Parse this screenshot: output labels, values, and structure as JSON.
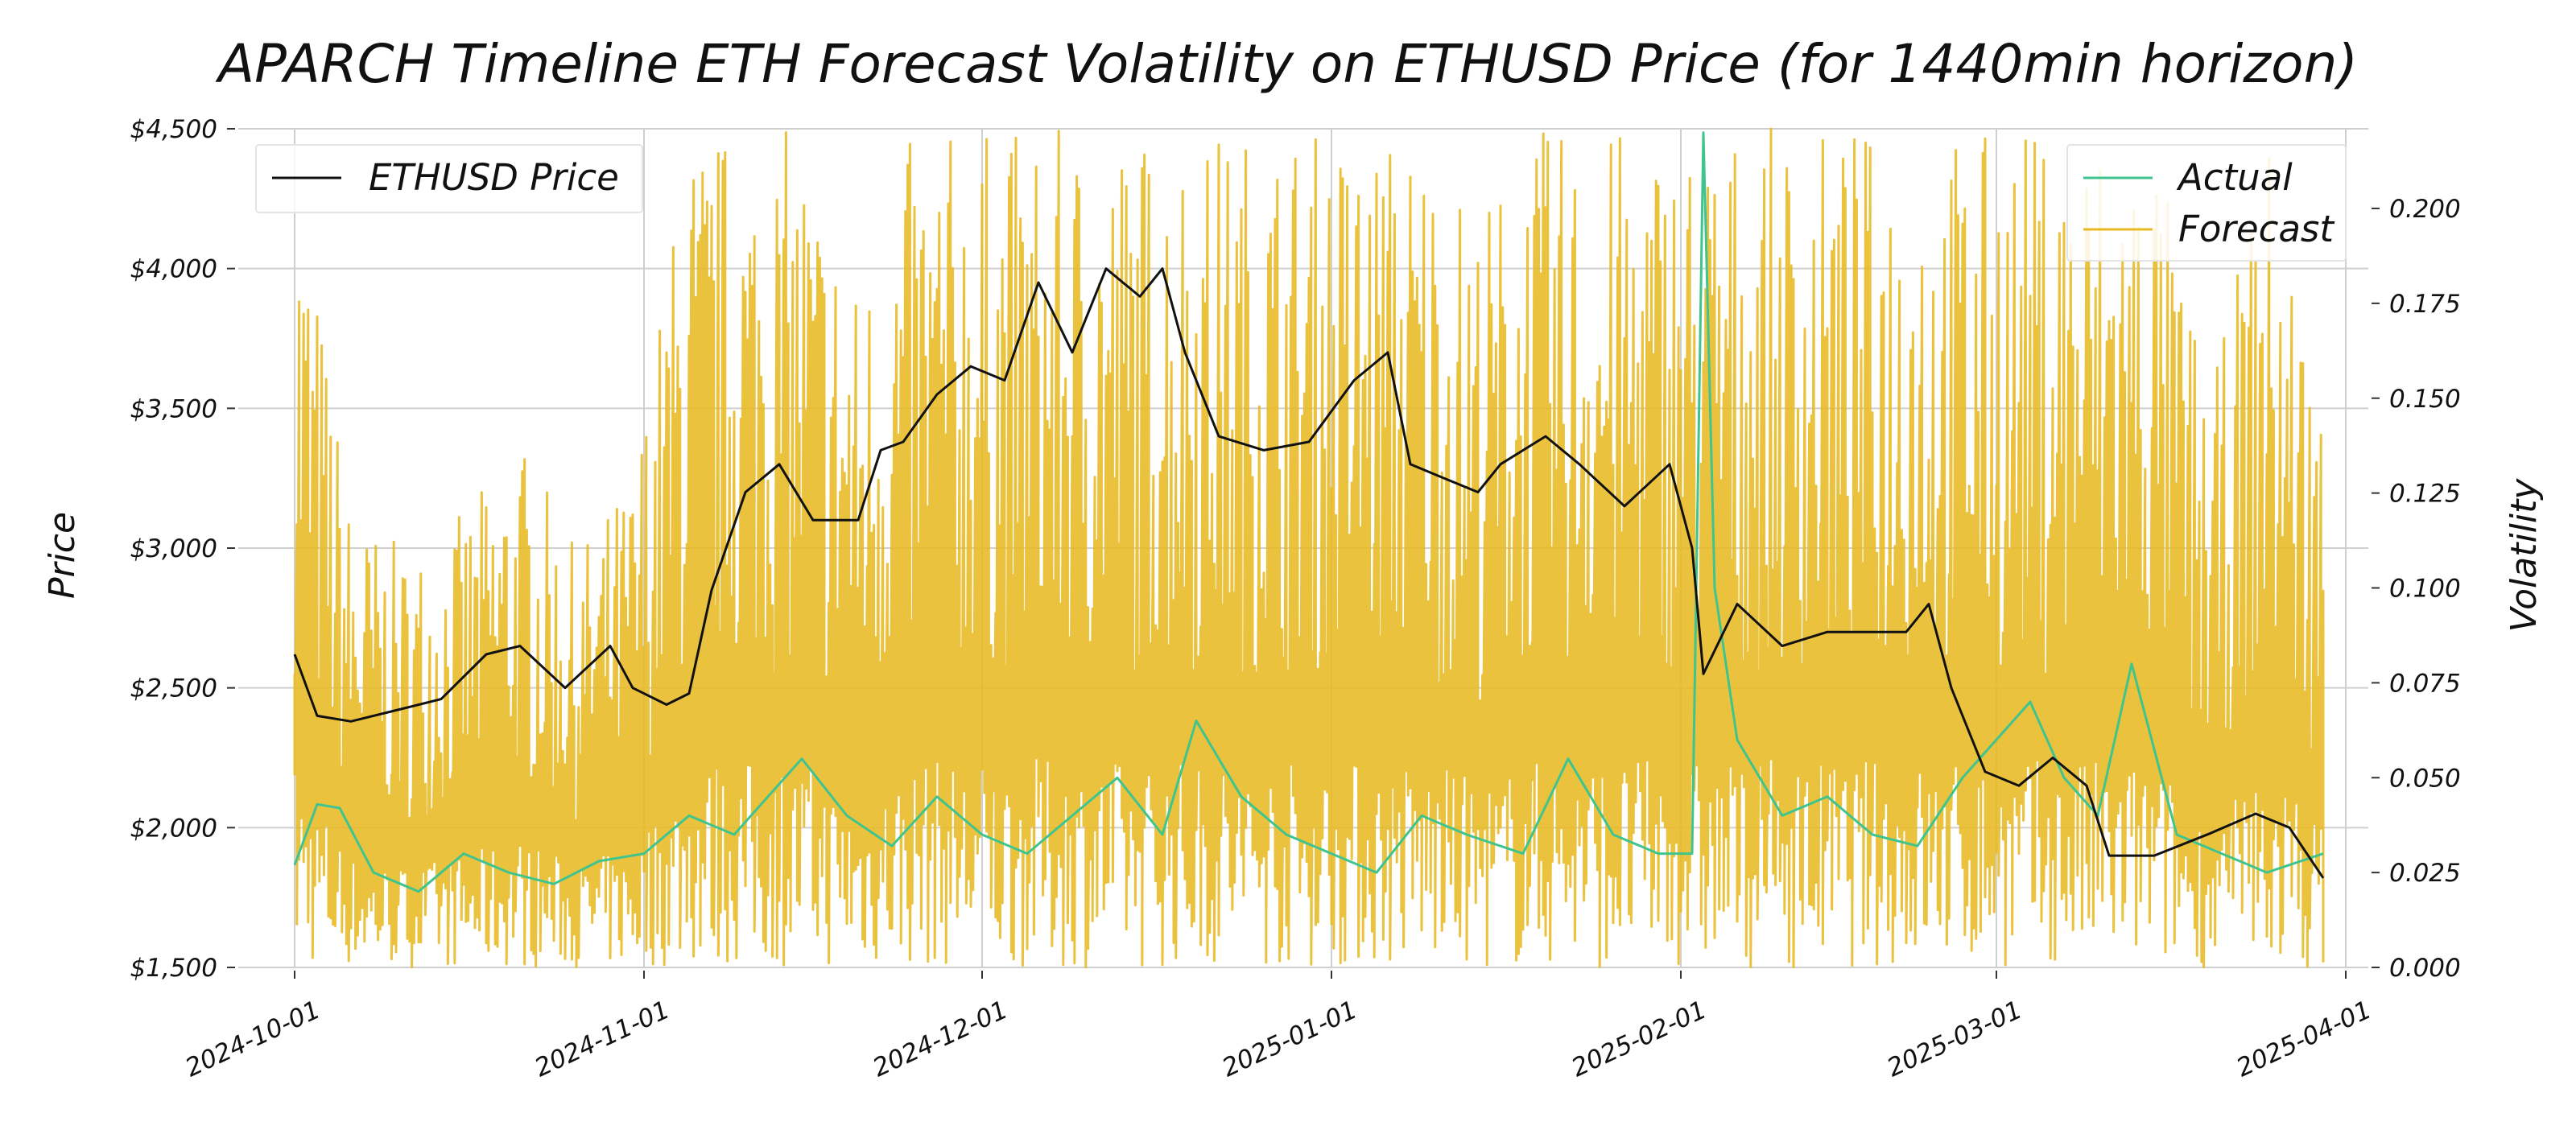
{
  "chart_data": {
    "type": "line",
    "title": "APARCH Timeline ETH Forecast Volatility on ETHUSD Price (for 1440min horizon)",
    "xlabel": "",
    "ylabel_left": "Price",
    "ylabel_right": "Volatility",
    "x_range": [
      "2024-09-26",
      "2025-04-03"
    ],
    "ylim_left": [
      1500,
      4500
    ],
    "ylim_right": [
      0.0,
      0.221
    ],
    "x_ticks": [
      "2024-10-01",
      "2024-11-01",
      "2024-12-01",
      "2025-01-01",
      "2025-02-01",
      "2025-03-01",
      "2025-04-01"
    ],
    "y_ticks_left": [
      {
        "value": 1500,
        "label": "$1,500"
      },
      {
        "value": 2000,
        "label": "$2,000"
      },
      {
        "value": 2500,
        "label": "$2,500"
      },
      {
        "value": 3000,
        "label": "$3,000"
      },
      {
        "value": 3500,
        "label": "$3,500"
      },
      {
        "value": 4000,
        "label": "$4,000"
      },
      {
        "value": 4500,
        "label": "$4,500"
      }
    ],
    "y_ticks_right": [
      {
        "value": 0.0,
        "label": "0.000"
      },
      {
        "value": 0.025,
        "label": "0.025"
      },
      {
        "value": 0.05,
        "label": "0.050"
      },
      {
        "value": 0.075,
        "label": "0.075"
      },
      {
        "value": 0.1,
        "label": "0.100"
      },
      {
        "value": 0.125,
        "label": "0.125"
      },
      {
        "value": 0.15,
        "label": "0.150"
      },
      {
        "value": 0.175,
        "label": "0.175"
      },
      {
        "value": 0.2,
        "label": "0.200"
      }
    ],
    "grid": true,
    "legend_left": {
      "placement": "top-left",
      "entries": [
        "ETHUSD Price"
      ]
    },
    "legend_right": {
      "placement": "top-right",
      "entries": [
        "Actual",
        "Forecast"
      ]
    },
    "series": [
      {
        "name": "ETHUSD Price",
        "axis": "left",
        "color": "#111111",
        "x": [
          "2024-10-01",
          "2024-10-03",
          "2024-10-06",
          "2024-10-10",
          "2024-10-14",
          "2024-10-18",
          "2024-10-21",
          "2024-10-25",
          "2024-10-29",
          "2024-10-31",
          "2024-11-03",
          "2024-11-05",
          "2024-11-07",
          "2024-11-10",
          "2024-11-13",
          "2024-11-16",
          "2024-11-20",
          "2024-11-22",
          "2024-11-24",
          "2024-11-27",
          "2024-11-30",
          "2024-12-03",
          "2024-12-06",
          "2024-12-09",
          "2024-12-12",
          "2024-12-15",
          "2024-12-17",
          "2024-12-19",
          "2024-12-22",
          "2024-12-26",
          "2024-12-30",
          "2025-01-03",
          "2025-01-06",
          "2025-01-08",
          "2025-01-11",
          "2025-01-14",
          "2025-01-16",
          "2025-01-20",
          "2025-01-23",
          "2025-01-27",
          "2025-01-31",
          "2025-02-02",
          "2025-02-03",
          "2025-02-06",
          "2025-02-10",
          "2025-02-14",
          "2025-02-18",
          "2025-02-21",
          "2025-02-23",
          "2025-02-25",
          "2025-02-28",
          "2025-03-03",
          "2025-03-06",
          "2025-03-09",
          "2025-03-11",
          "2025-03-15",
          "2025-03-20",
          "2025-03-24",
          "2025-03-27",
          "2025-03-30"
        ],
        "values": [
          2620,
          2400,
          2380,
          2420,
          2460,
          2620,
          2650,
          2500,
          2650,
          2500,
          2440,
          2480,
          2850,
          3200,
          3300,
          3100,
          3100,
          3350,
          3380,
          3550,
          3650,
          3600,
          3950,
          3700,
          4000,
          3900,
          4000,
          3700,
          3400,
          3350,
          3380,
          3600,
          3700,
          3300,
          3250,
          3200,
          3300,
          3400,
          3300,
          3150,
          3300,
          3000,
          2550,
          2800,
          2650,
          2700,
          2700,
          2700,
          2800,
          2500,
          2200,
          2150,
          2250,
          2150,
          1900,
          1900,
          1980,
          2050,
          2000,
          1820
        ]
      },
      {
        "name": "Actual",
        "axis": "right",
        "color": "#3fc48f",
        "x": [
          "2024-10-01",
          "2024-10-03",
          "2024-10-05",
          "2024-10-08",
          "2024-10-12",
          "2024-10-16",
          "2024-10-20",
          "2024-10-24",
          "2024-10-28",
          "2024-11-01",
          "2024-11-05",
          "2024-11-09",
          "2024-11-12",
          "2024-11-15",
          "2024-11-19",
          "2024-11-23",
          "2024-11-27",
          "2024-12-01",
          "2024-12-05",
          "2024-12-09",
          "2024-12-13",
          "2024-12-17",
          "2024-12-20",
          "2024-12-24",
          "2024-12-28",
          "2025-01-01",
          "2025-01-05",
          "2025-01-09",
          "2025-01-13",
          "2025-01-18",
          "2025-01-22",
          "2025-01-26",
          "2025-01-30",
          "2025-02-02",
          "2025-02-03",
          "2025-02-04",
          "2025-02-06",
          "2025-02-10",
          "2025-02-14",
          "2025-02-18",
          "2025-02-22",
          "2025-02-26",
          "2025-03-01",
          "2025-03-04",
          "2025-03-07",
          "2025-03-10",
          "2025-03-13",
          "2025-03-17",
          "2025-03-21",
          "2025-03-25",
          "2025-03-30"
        ],
        "values": [
          0.027,
          0.043,
          0.042,
          0.025,
          0.02,
          0.03,
          0.025,
          0.022,
          0.028,
          0.03,
          0.04,
          0.035,
          0.045,
          0.055,
          0.04,
          0.032,
          0.045,
          0.035,
          0.03,
          0.04,
          0.05,
          0.035,
          0.065,
          0.045,
          0.035,
          0.03,
          0.025,
          0.04,
          0.035,
          0.03,
          0.055,
          0.035,
          0.03,
          0.03,
          0.22,
          0.1,
          0.06,
          0.04,
          0.045,
          0.035,
          0.032,
          0.05,
          0.06,
          0.07,
          0.05,
          0.04,
          0.08,
          0.035,
          0.03,
          0.025,
          0.03
        ]
      },
      {
        "name": "Forecast",
        "axis": "right",
        "color": "#e8b923",
        "x": [
          "2024-10-01",
          "2024-10-06",
          "2024-10-11",
          "2024-10-16",
          "2024-10-21",
          "2024-10-26",
          "2024-10-31",
          "2024-11-05",
          "2024-11-10",
          "2024-11-15",
          "2024-11-20",
          "2024-11-25",
          "2024-11-30",
          "2024-12-05",
          "2024-12-10",
          "2024-12-15",
          "2024-12-20",
          "2024-12-25",
          "2024-12-30",
          "2025-01-04",
          "2025-01-09",
          "2025-01-14",
          "2025-01-19",
          "2025-01-24",
          "2025-01-29",
          "2025-02-03",
          "2025-02-08",
          "2025-02-13",
          "2025-02-18",
          "2025-02-23",
          "2025-02-28",
          "2025-03-05",
          "2025-03-10",
          "2025-03-15",
          "2025-03-20",
          "2025-03-25",
          "2025-03-30"
        ],
        "spike_max": [
          0.221,
          0.12,
          0.11,
          0.12,
          0.14,
          0.11,
          0.13,
          0.221,
          0.221,
          0.221,
          0.18,
          0.221,
          0.221,
          0.221,
          0.221,
          0.221,
          0.221,
          0.221,
          0.221,
          0.221,
          0.221,
          0.2,
          0.221,
          0.221,
          0.221,
          0.221,
          0.221,
          0.221,
          0.221,
          0.221,
          0.221,
          0.221,
          0.221,
          0.221,
          0.15,
          0.221,
          0.15
        ],
        "spike_min": 0.0
      }
    ]
  }
}
